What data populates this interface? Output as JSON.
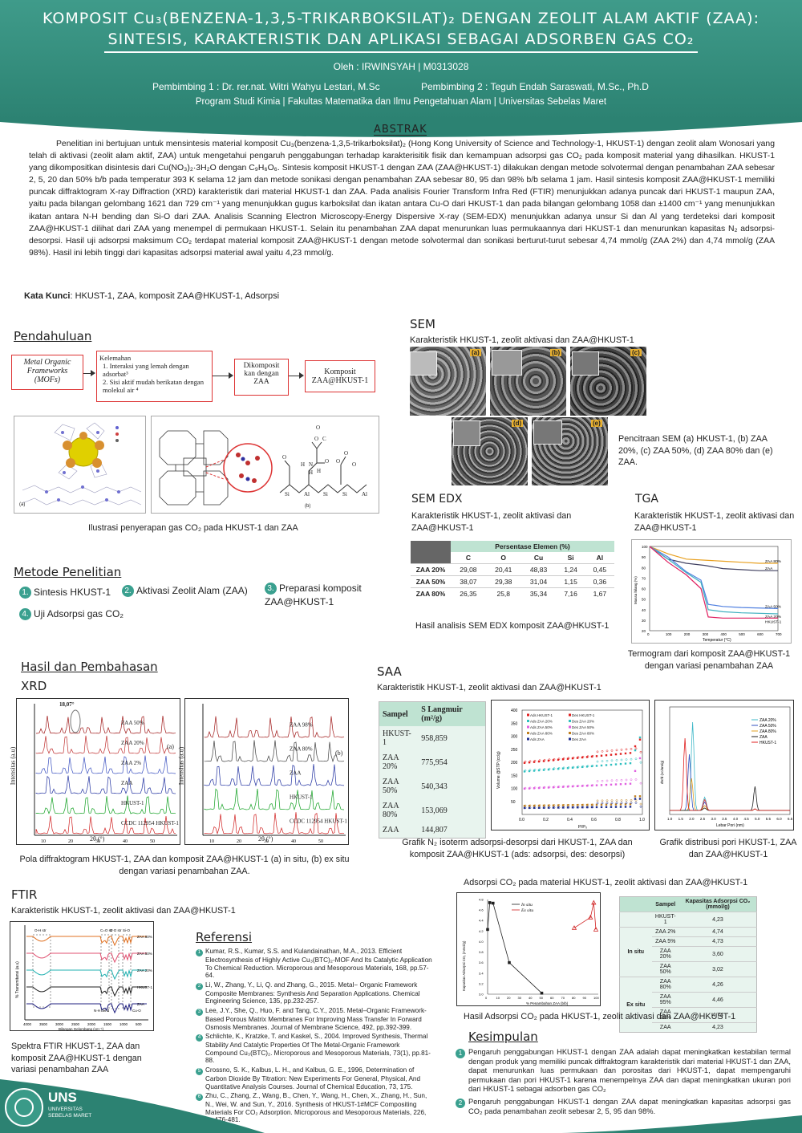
{
  "header": {
    "title1": "KOMPOSIT Cu₃(BENZENA-1,3,5-TRIKARBOKSILAT)₂ DENGAN ZEOLIT ALAM AKTIF (ZAA):",
    "title2": "SINTESIS, KARAKTERISTIK DAN APLIKASI SEBAGAI ADSORBEN GAS CO₂",
    "author": "Oleh : IRWINSYAH | M0313028",
    "supervisor1": "Pembimbing 1 : Dr. rer.nat. Witri Wahyu Lestari, M.Sc",
    "supervisor2": "Pembimbing 2 : Teguh Endah Saraswati, M.Sc., Ph.D",
    "program": "Program Studi Kimia | Fakultas Matematika dan Ilmu Pengetahuan Alam | Universitas Sebelas Maret"
  },
  "abstract": {
    "heading": "ABSTRAK",
    "text": "Penelitian ini bertujuan untuk mensintesis material komposit Cu₃(benzena-1,3,5-trikarboksilat)₂ (Hong Kong University of Science and Technology-1, HKUST-1) dengan zeolit alam Wonosari yang telah di aktivasi (zeolit alam aktif, ZAA) untuk mengetahui pengaruh penggabungan terhadap karakterisitik fisik dan kemampuan adsorpsi gas CO₂ pada komposit material yang dihasilkan. HKUST-1 yang dikompositkan disintesis dari Cu(NO₃)₂·3H₂O dengan C₉H₆O₆. Sintesis komposit HKUST-1 dengan ZAA (ZAA@HKUST-1) dilakukan dengan metode solvotermal dengan penambahan ZAA sebesar 2, 5, 20 dan 50% b/b pada temperatur 393 K selama 12 jam dan metode sonikasi dengan penambahan ZAA sebesar 80, 95 dan 98% b/b selama 1 jam. Hasil sintesis komposit ZAA@HKUST-1 memiliki puncak diffraktogram X-ray Diffraction (XRD) karakteristik dari material HKUST-1 dan ZAA. Pada analisis Fourier Transform Infra Red (FTIR) menunjukkan adanya puncak dari HKUST-1 maupun ZAA, yaitu pada bilangan gelombang 1621 dan 729 cm⁻¹ yang menunjukkan gugus karboksilat dan ikatan antara Cu-O dari HKUST-1 dan pada bilangan gelombang 1058 dan ±1400 cm⁻¹ yang menunjukkan ikatan antara N-H bending dan Si-O dari ZAA. Analisis Scanning Electron Microscopy-Energy Dispersive X-ray (SEM-EDX) menunjukkan adanya unsur Si dan Al yang terdeteksi dari komposit ZAA@HKUST-1 dilihat dari ZAA yang menempel di permukaan HKUST-1. Selain itu penambahan ZAA dapat menurunkan luas permukaannya dari HKUST-1 dan menurunkan kapasitas N₂ adsorpsi-desorpsi. Hasil uji adsorpsi maksimum CO₂ terdapat material komposit ZAA@HKUST-1 dengan metode solvotermal dan sonikasi berturut-turut sebesar  4,74 mmol/g (ZAA 2%) dan 4,74 mmol/g (ZAA 98%). Hasil ini lebih tinggi dari kapasitas adsorpsi material awal yaitu 4,23 mmol/g.",
    "keywords_label": "Kata Kunci",
    "keywords": ": HKUST-1, ZAA, komposit ZAA@HKUST-1, Adsorpsi"
  },
  "pendahuluan": {
    "heading": "Pendahuluan",
    "box1": "Metal Organic Frameworks (MOFs)",
    "box2_title": "Kelemahan",
    "box2_items": [
      "1.  Interaksi yang lemah dengan adsorbat³",
      "2.  Sisi aktif mudah berikatan dengan molekul air ⁴"
    ],
    "box3": "Dikomposit kan dengan ZAA",
    "box4": "Komposit ZAA@HKUST-1",
    "caption": "Ilustrasi penyerapan gas CO₂ pada HKUST-1 dan ZAA",
    "fig_labels": [
      "(a)",
      "(b)"
    ],
    "zeolite_atoms": [
      "O",
      "C",
      "O",
      "O",
      "H",
      "N",
      "H",
      "H",
      "O",
      "O",
      "O",
      "O",
      "Si",
      "Al",
      "Si",
      "Si",
      "Al"
    ]
  },
  "metode": {
    "heading": "Metode Penelitian",
    "steps": [
      {
        "n": "1.",
        "label": "Sintesis HKUST-1"
      },
      {
        "n": "2.",
        "label": "Aktivasi Zeolit Alam (ZAA)"
      },
      {
        "n": "3.",
        "label": "Preparasi komposit ZAA@HKUST-1"
      },
      {
        "n": "4.",
        "label": "Uji Adsorpsi gas CO₂"
      }
    ]
  },
  "hasil": {
    "heading": "Hasil dan Pembahasan"
  },
  "xrd": {
    "heading": "XRD",
    "caption": "Pola diffraktogram HKUST-1, ZAA dan komposit ZAA@HKUST-1 (a) in situ, (b) ex situ dengan variasi penambahan ZAA.",
    "ylabel": "Intensitas (a.u)",
    "xlabel": "2θ (°)",
    "peak_label": "18,07°",
    "panel_a": {
      "tag": "(a)",
      "traces": [
        "ZAA 50%",
        "ZAA 20%",
        "ZAA 2%",
        "ZAA",
        "HKUST-1",
        "CCDC 112954 HKUST-1"
      ],
      "colors": [
        "#a01818",
        "#c03030",
        "#3a50c0",
        "#2030a0",
        "#10a020",
        "#d02020"
      ],
      "xticks": [
        "10",
        "20",
        "30",
        "40",
        "50"
      ]
    },
    "panel_b": {
      "tag": "(b)",
      "traces": [
        "ZAA 98%",
        "ZAA 80%",
        "ZAA",
        "HKUST-1",
        "CCDC 112954 HKUST-1"
      ],
      "colors": [
        "#a01818",
        "#404040",
        "#2030a0",
        "#10a020",
        "#d02020"
      ],
      "xticks": [
        "10",
        "20",
        "30",
        "40",
        "50"
      ]
    }
  },
  "ftir": {
    "heading": "FTIR",
    "subtitle": "Karakteristik HKUST-1, zeolit aktivasi dan ZAA@HKUST-1",
    "caption": "Spektra FTIR HKUST-1, ZAA dan komposit ZAA@HKUST-1 dengan variasi penambahan ZAA",
    "traces": [
      "ZAA 80%",
      "ZAA 50%",
      "ZAA 20%",
      "HKUST-1",
      "ZAA"
    ],
    "colors": [
      "#e07020",
      "#e05070",
      "#20b0b0",
      "#202020",
      "#202080"
    ],
    "band_labels": [
      "O-H str",
      "C=O str",
      "C-O str",
      "Si-O",
      "N-H bend",
      "Cu-O"
    ],
    "ylabel": "% Transmitansi (a.u)",
    "xlabel": "Bilangan Gelombang (cm⁻¹)",
    "xticks": [
      "4000",
      "3500",
      "3000",
      "2500",
      "2000",
      "1500",
      "1000",
      "500"
    ]
  },
  "sem": {
    "heading": "SEM",
    "subtitle": "Karakteristik HKUST-1, zeolit aktivasi dan ZAA@HKUST-1",
    "labels": [
      "(a)",
      "(b)",
      "(c)",
      "(d)",
      "(e)"
    ],
    "caption": "Pencitraan SEM (a) HKUST-1, (b) ZAA 20%, (c) ZAA 50%, (d) ZAA 80% dan (e) ZAA."
  },
  "semedx": {
    "heading": "SEM EDX",
    "subtitle": "Karakteristik HKUST-1, zeolit aktivasi dan ZAA@HKUST-1",
    "group_header": "Persentase Elemen (%)",
    "columns": [
      "C",
      "O",
      "Cu",
      "Si",
      "Al"
    ],
    "rows": [
      {
        "sample": "ZAA 20%",
        "values": [
          "29,08",
          "20,41",
          "48,83",
          "1,24",
          "0,45"
        ]
      },
      {
        "sample": "ZAA 50%",
        "values": [
          "38,07",
          "29,38",
          "31,04",
          "1,15",
          "0,36"
        ]
      },
      {
        "sample": "ZAA 80%",
        "values": [
          "26,35",
          "25,8",
          "35,34",
          "7,16",
          "1,67"
        ]
      }
    ],
    "caption": "Hasil analisis SEM EDX komposit ZAA@HKUST-1"
  },
  "tga": {
    "heading": "TGA",
    "subtitle": "Karakteristik HKUST-1, zeolit aktivasi dan ZAA@HKUST-1",
    "caption": "Termogram dari komposit ZAA@HKUST-1 dengan variasi penambahan ZAA",
    "ylabel": "Massa hilang (%)",
    "xlabel": "Temperatur (°C)",
    "xticks": [
      "0",
      "100",
      "200",
      "300",
      "400",
      "500",
      "600",
      "700"
    ],
    "yticks": [
      "100",
      "90",
      "80",
      "70",
      "60",
      "50",
      "40",
      "30",
      "20"
    ],
    "series": [
      {
        "name": "ZAA 80%",
        "color": "#e8a020",
        "values": [
          [
            0,
            100
          ],
          [
            100,
            93
          ],
          [
            200,
            88
          ],
          [
            300,
            87
          ],
          [
            400,
            86
          ],
          [
            500,
            85
          ],
          [
            600,
            84
          ],
          [
            700,
            84
          ]
        ]
      },
      {
        "name": "ZAA",
        "color": "#404060",
        "values": [
          [
            0,
            100
          ],
          [
            100,
            88
          ],
          [
            200,
            84
          ],
          [
            300,
            82
          ],
          [
            400,
            79
          ],
          [
            500,
            78
          ],
          [
            600,
            77
          ],
          [
            700,
            77
          ]
        ]
      },
      {
        "name": "ZAA 50%",
        "color": "#5080e0",
        "values": [
          [
            0,
            100
          ],
          [
            100,
            90
          ],
          [
            200,
            76
          ],
          [
            280,
            68
          ],
          [
            320,
            45
          ],
          [
            400,
            43
          ],
          [
            500,
            42
          ],
          [
            700,
            41
          ]
        ]
      },
      {
        "name": "ZAA 20%",
        "color": "#40b0c0",
        "values": [
          [
            0,
            100
          ],
          [
            100,
            88
          ],
          [
            200,
            75
          ],
          [
            280,
            66
          ],
          [
            320,
            40
          ],
          [
            400,
            38
          ],
          [
            500,
            37
          ],
          [
            700,
            36
          ]
        ]
      },
      {
        "name": "HKUST-1",
        "color": "#e02060",
        "values": [
          [
            0,
            100
          ],
          [
            100,
            85
          ],
          [
            200,
            73
          ],
          [
            280,
            60
          ],
          [
            320,
            33
          ],
          [
            400,
            32
          ],
          [
            500,
            32
          ],
          [
            700,
            32
          ]
        ]
      }
    ]
  },
  "saa": {
    "heading": "SAA",
    "subtitle": "Karakteristik HKUST-1, zeolit aktivasi dan ZAA@HKUST-1",
    "table_headers": [
      "Sampel",
      "S Langmuir (m²/g)"
    ],
    "table_rows": [
      [
        "HKUST-1",
        "958,859"
      ],
      [
        "ZAA 20%",
        "775,954"
      ],
      [
        "ZAA 50%",
        "540,343"
      ],
      [
        "ZAA 80%",
        "153,069"
      ],
      [
        "ZAA",
        "144,807"
      ]
    ],
    "isotherm_caption": "Grafik N₂ isoterm adsorpsi-desorpsi dari HKUST-1, ZAA dan komposit ZAA@HKUST-1 (ads: adsorpsi, des: desorpsi)",
    "isotherm_legend": [
      "Ads HKUST-1",
      "Ads ZAA 20%",
      "Ads ZAA 50%",
      "Ads ZAA 80%",
      "Ads ZAA",
      "Des HKUST-1",
      "Des ZAA 20%",
      "Des ZAA 50%",
      "Des ZAA 80%",
      "Des ZAA"
    ],
    "isotherm_ylabel": "Volume @STP (cc/g)",
    "isotherm_xlabel": "P/P₀",
    "isotherm_xticks": [
      "0.0",
      "0.2",
      "0.4",
      "0.6",
      "0.8",
      "1.0"
    ],
    "isotherm_yticks": [
      "400",
      "350",
      "300",
      "250",
      "200",
      "150",
      "100",
      "50"
    ],
    "pore_caption": "Grafik distribusi pori HKUST-1, ZAA dan ZAA@HKUST-1",
    "pore_legend": [
      "ZAA 20%",
      "ZAA 50%",
      "ZAA 80%",
      "ZAA",
      "HKUST-1"
    ],
    "pore_colors": [
      "#40b8c8",
      "#3050c0",
      "#e0a020",
      "#202020",
      "#e02020"
    ],
    "pore_xlabel": "Lebar Pori (nm)",
    "pore_ylabel": "dV/d (cc/nm/g)",
    "pore_xticks": [
      "1.0",
      "1.5",
      "2.0",
      "2.5",
      "3.0",
      "3.5",
      "4.0",
      "4.5",
      "5.0",
      "5.5",
      "6.0",
      "6.5"
    ]
  },
  "adsorpsi": {
    "title": "Adsorpsi CO₂ pada material HKUST-1, zeolit aktivasi dan ZAA@HKUST-1",
    "caption": "Hasil Adsorpsi CO₂ pada HKUST-1, zeolit aktivasi dan ZAA@HKUST-1",
    "legend": [
      "In situ",
      "Ex situ"
    ],
    "ylabel": "Kapasitas Adsorpsi CO₂ (mmol/g)",
    "xlabel": "% Penambahan ZAA (b/b)",
    "xticks": [
      "0",
      "10",
      "20",
      "30",
      "40",
      "50",
      "60",
      "70",
      "80",
      "90",
      "100"
    ],
    "yticks": [
      "4.8",
      "4.6",
      "4.4",
      "4.2",
      "4.0",
      "3.8",
      "3.6",
      "3.4",
      "3.2",
      "3.0"
    ],
    "table_headers": [
      "Sampel",
      "Kapasitas Adsorpsi CO₂ (mmol/g)"
    ],
    "groups": [
      {
        "group": "",
        "rows": [
          [
            "HKUST-1",
            "4,23"
          ]
        ]
      },
      {
        "group": "In situ",
        "rows": [
          [
            "ZAA 2%",
            "4,74"
          ],
          [
            "ZAA 5%",
            "4,73"
          ],
          [
            "ZAA 20%",
            "3,60"
          ],
          [
            "ZAA 50%",
            "3,02"
          ]
        ]
      },
      {
        "group": "Ex situ",
        "rows": [
          [
            "ZAA 80%",
            "4,26"
          ],
          [
            "ZAA 95%",
            "4,46"
          ],
          [
            "ZAA 98%",
            "4,74"
          ],
          [
            "ZAA",
            "4,23"
          ]
        ]
      }
    ]
  },
  "chart_data": {
    "type": "line",
    "title": "",
    "xlabel": "% Penambahan ZAA (b/b)",
    "ylabel": "Kapasitas Adsorpsi CO₂ (mmol/g)",
    "xlim": [
      0,
      100
    ],
    "ylim": [
      3.0,
      4.8
    ],
    "series": [
      {
        "name": "In situ",
        "x": [
          0,
          2,
          5,
          20,
          50
        ],
        "values": [
          4.23,
          4.74,
          4.73,
          3.6,
          3.02
        ]
      },
      {
        "name": "Ex situ",
        "x": [
          80,
          95,
          98,
          100
        ],
        "values": [
          4.26,
          4.46,
          4.74,
          4.23
        ]
      }
    ]
  },
  "referensi": {
    "heading": "Referensi",
    "items": [
      "Kumar, R.S., Kumar, S.S. and Kulandainathan, M.A., 2013. Efficient Electrosynthesis of Highly Active Cu₃(BTC)₂-MOF And Its Catalytic Application To Chemical Reduction. Microporous and Mesoporous Materials, 168, pp.57-64.",
      "Li, W., Zhang, Y., Li, Q. and Zhang, G., 2015. Metal− Organic Framework Composite Membranes: Synthesis And Separation Applications. Chemical Engineering Science, 135, pp.232-257.",
      "Lee, J.Y., She, Q., Huo, F. and Tang, C.Y., 2015. Metal–Organic Framework-Based Porous Matrix Membranes For Improving Mass Transfer In Forward Osmosis Membranes. Journal of Membrane Science, 492, pp.392-399.",
      "Schlichte, K., Kratzke, T. and Kaskel, S., 2004. Improved Synthesis, Thermal Stability And Catalytic Properties Of The Metal-Organic Framework Compound Cu₃(BTC)₂. Microporous and Mesoporous Materials, 73(1), pp.81-88.",
      "Crossno, S. K., Kalbus, L. H., and Kalbus, G. E., 1996, Determination of Carbon Dioxide By Titration: New Experiments For General, Physical, And Quantitative Analysis Courses. Journal of Chemical Education, 73, 175.",
      "Zhu, C., Zhang, Z., Wang, B., Chen, Y., Wang, H., Chen, X., Zhang, H., Sun, N., Wei, W. and Sun, Y., 2016. Synthesis of HKUST-1#MCF Compositing Materials For CO₂ Adsorption. Microporous and Mesoporous Materials, 226, pp.476-481."
    ]
  },
  "kesimpulan": {
    "heading": "Kesimpulan",
    "items": [
      "Pengaruh penggabungan HKUST-1 dengan ZAA adalah dapat meningkatkan kestabilan termal dengan  produk yang memiliki puncak diffraktogram karakteristik dari material HKUST-1 dan ZAA, dapat menurunkan luas permukaan dan porositas dari HKUST-1, dapat mempengaruhi permukaan dan pori HKUST-1 karena menempelnya ZAA dan dapat meningkatkan ukuran pori dari HKUST-1 sebagai adsorben gas CO₂",
      "Pengaruh penggabungan HKUST-1 dengan ZAA dapat meningkatkan kapasitas adsorpsi gas CO₂ pada penambahan zeolit sebesar 2, 5, 95 dan 98%."
    ]
  },
  "logo": {
    "name": "UNS",
    "sub1": "UNIVERSITAS",
    "sub2": "SEBELAS MARET"
  },
  "colors": {
    "teal": "#2e8777",
    "accent": "#3aa08f",
    "edx_header": "#bfe3d2"
  }
}
